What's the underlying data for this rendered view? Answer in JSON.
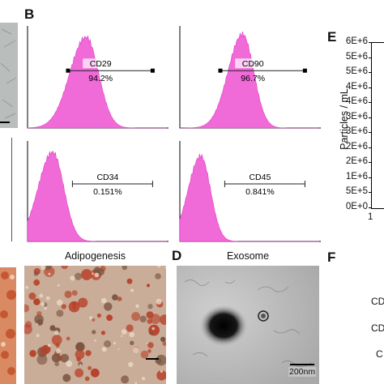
{
  "panels": {
    "b_letter": "B",
    "d_letter": "D",
    "e_letter": "E",
    "f_letter": "F"
  },
  "histograms": [
    {
      "marker": "CD29",
      "percent": "94.2%",
      "peak": 0.42,
      "width": 0.09,
      "height": 0.92,
      "gate": true
    },
    {
      "marker": "CD90",
      "percent": "96.7%",
      "peak": 0.45,
      "width": 0.08,
      "height": 0.95,
      "gate": true
    },
    {
      "marker": "CD34",
      "percent": "0.151%",
      "peak": 0.18,
      "width": 0.08,
      "height": 0.92,
      "gate": false
    },
    {
      "marker": "CD45",
      "percent": "0.841%",
      "peak": 0.15,
      "width": 0.07,
      "height": 0.88,
      "gate": false
    }
  ],
  "histogram_color": "#f06ad8",
  "captions": {
    "adipogenesis": "Adipogenesis",
    "exosome": "Exosome",
    "scale": "200nm"
  },
  "panel_e": {
    "ylabel": "Particles / mL",
    "yticks": [
      "6E+6",
      "5E+6",
      "5E+6",
      "4E+6",
      "4E+6",
      "3E+6",
      "3E+6",
      "2E+6",
      "2E+6",
      "1E+6",
      "5E+5",
      "0E+0"
    ],
    "xtick": "1"
  },
  "panel_f": {
    "labels": [
      "CD",
      "CD",
      "C"
    ]
  }
}
